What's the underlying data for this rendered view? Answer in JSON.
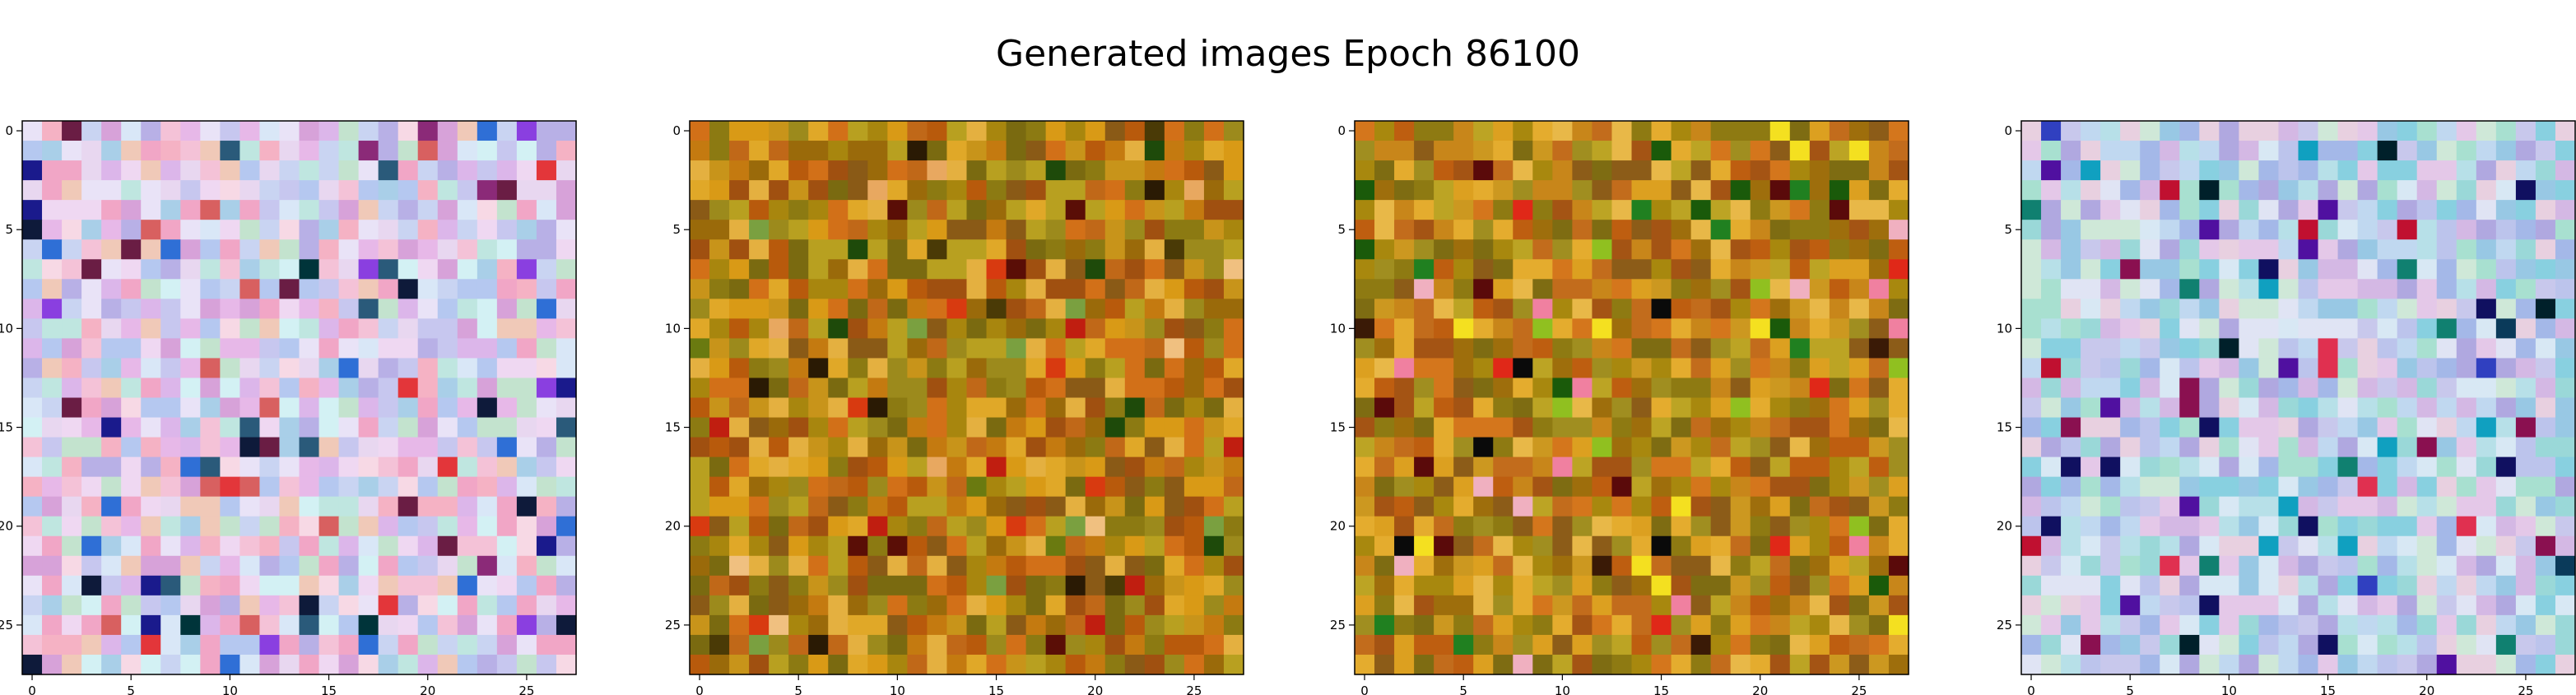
{
  "figure": {
    "title": "Generated images Epoch 86100"
  },
  "chart_data": [
    {
      "type": "heatmap",
      "panel": 1,
      "palette": "pastel",
      "grid_size": [
        28,
        28
      ],
      "xlim": [
        -0.5,
        27.5
      ],
      "ylim": [
        27.5,
        -0.5
      ],
      "xticks": [
        0,
        5,
        10,
        15,
        20,
        25
      ],
      "yticks": [
        0,
        5,
        10,
        15,
        20,
        25
      ],
      "grid": false,
      "colors": [
        "#f4c2d7",
        "#e8d7f0",
        "#c9d4f2",
        "#d9e7f7",
        "#f7d9e5",
        "#bfe6e0",
        "#e7b8e8",
        "#c7c7ef",
        "#f1a6c6",
        "#d3f1f4",
        "#b8b0e6",
        "#efd8f2",
        "#a9cfe8",
        "#f0c9b8",
        "#d7a2d9",
        "#b5c8f0",
        "#e9e3f7",
        "#f5b2c4",
        "#c3e3ce",
        "#dcb6ea"
      ],
      "accents": [
        "#8b2a78",
        "#1a1a8c",
        "#0e1a3a",
        "#e3363a",
        "#6a1d44",
        "#8a3fe0",
        "#2a5a7a",
        "#d86060",
        "#2f6fd6",
        "#00343a"
      ]
    },
    {
      "type": "heatmap",
      "panel": 2,
      "palette": "warm",
      "grid_size": [
        28,
        28
      ],
      "xlim": [
        -0.5,
        27.5
      ],
      "ylim": [
        27.5,
        -0.5
      ],
      "xticks": [
        0,
        5,
        10,
        15,
        20,
        25
      ],
      "yticks": [
        0,
        5,
        10,
        15,
        20,
        25
      ],
      "grid": false,
      "colors": [
        "#c47a10",
        "#a8860e",
        "#d99a16",
        "#8c7a12",
        "#b85a0c",
        "#e0a828",
        "#9a6a0a",
        "#c8941a",
        "#7a6a10",
        "#d27018",
        "#b8a020",
        "#a05010",
        "#e4b040",
        "#8a5a16",
        "#c06818",
        "#9c8a1c"
      ],
      "accents": [
        "#5a0e06",
        "#2a1a04",
        "#6a7a10",
        "#d83a10",
        "#4a3a06",
        "#e8a860",
        "#1e4a0a",
        "#c01e10",
        "#7aa040",
        "#f0c080"
      ]
    },
    {
      "type": "heatmap",
      "panel": 3,
      "palette": "warm",
      "grid_size": [
        28,
        28
      ],
      "xlim": [
        -0.5,
        27.5
      ],
      "ylim": [
        27.5,
        -0.5
      ],
      "xticks": [
        0,
        5,
        10,
        15,
        20,
        25
      ],
      "yticks": [
        0,
        5,
        10,
        15,
        20,
        25
      ],
      "grid": false,
      "colors": [
        "#c8861a",
        "#a8880e",
        "#dca020",
        "#8e7a12",
        "#be5e10",
        "#e4ac2e",
        "#9e6e0c",
        "#cc9820",
        "#7e6c12",
        "#d4761c",
        "#bca424",
        "#a45414",
        "#e8b848",
        "#8c5c18",
        "#c26c1c",
        "#a08e20"
      ],
      "accents": [
        "#0a0a0a",
        "#1a5a0a",
        "#f080a0",
        "#e02818",
        "#f4e020",
        "#3a1a06",
        "#90c020",
        "#5a0a0a",
        "#f0b0c0",
        "#208020"
      ]
    },
    {
      "type": "heatmap",
      "panel": 4,
      "palette": "cool",
      "grid_size": [
        28,
        28
      ],
      "xlim": [
        -0.5,
        27.5
      ],
      "ylim": [
        27.5,
        -0.5
      ],
      "xticks": [
        0,
        5,
        10,
        15,
        20,
        25
      ],
      "yticks": [
        0,
        5,
        10,
        15,
        20,
        25
      ],
      "grid": false,
      "colors": [
        "#b7e0e8",
        "#c8c8ec",
        "#e4c8e8",
        "#9ad8d8",
        "#d8e8f4",
        "#a4b8e8",
        "#cfe8d8",
        "#b0a8e0",
        "#e8d0e0",
        "#88d0e0",
        "#c0d8f0",
        "#d4b8e4",
        "#98c8e4",
        "#e0e4f4",
        "#a8e0d0",
        "#bcc4ec"
      ],
      "accents": [
        "#c01030",
        "#101060",
        "#0a3a5a",
        "#8a1050",
        "#10a0c0",
        "#3040c0",
        "#e03050",
        "#00202a",
        "#5010a0",
        "#108070"
      ]
    }
  ]
}
